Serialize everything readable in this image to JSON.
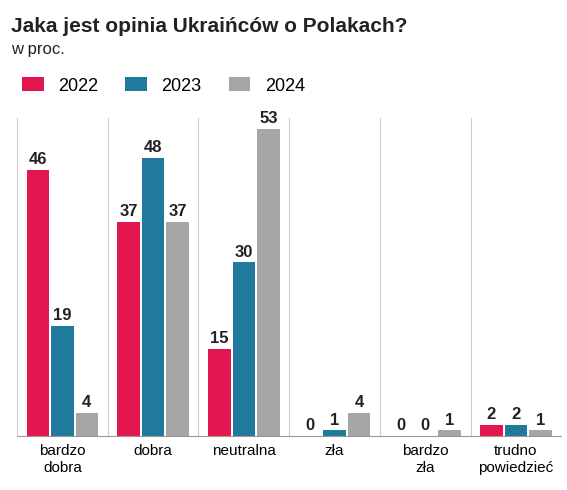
{
  "chart_data": {
    "type": "bar",
    "title": "Jaka jest opinia Ukraińców o Polakach?",
    "subtitle": "w proc.",
    "categories": [
      "bardzo dobra",
      "dobra",
      "neutralna",
      "zła",
      "bardzo zła",
      "trudno powiedzieć"
    ],
    "series": [
      {
        "name": "2022",
        "color": "#e3174f",
        "values": [
          46,
          37,
          15,
          0,
          0,
          2
        ]
      },
      {
        "name": "2023",
        "color": "#1f7a9e",
        "values": [
          19,
          48,
          30,
          1,
          0,
          2
        ]
      },
      {
        "name": "2024",
        "color": "#a6a6a6",
        "values": [
          4,
          37,
          53,
          4,
          1,
          1
        ]
      }
    ],
    "ylim": [
      0,
      55
    ],
    "data_labels": true,
    "tick_labels": "x",
    "legend": "upper left",
    "grid": false
  }
}
